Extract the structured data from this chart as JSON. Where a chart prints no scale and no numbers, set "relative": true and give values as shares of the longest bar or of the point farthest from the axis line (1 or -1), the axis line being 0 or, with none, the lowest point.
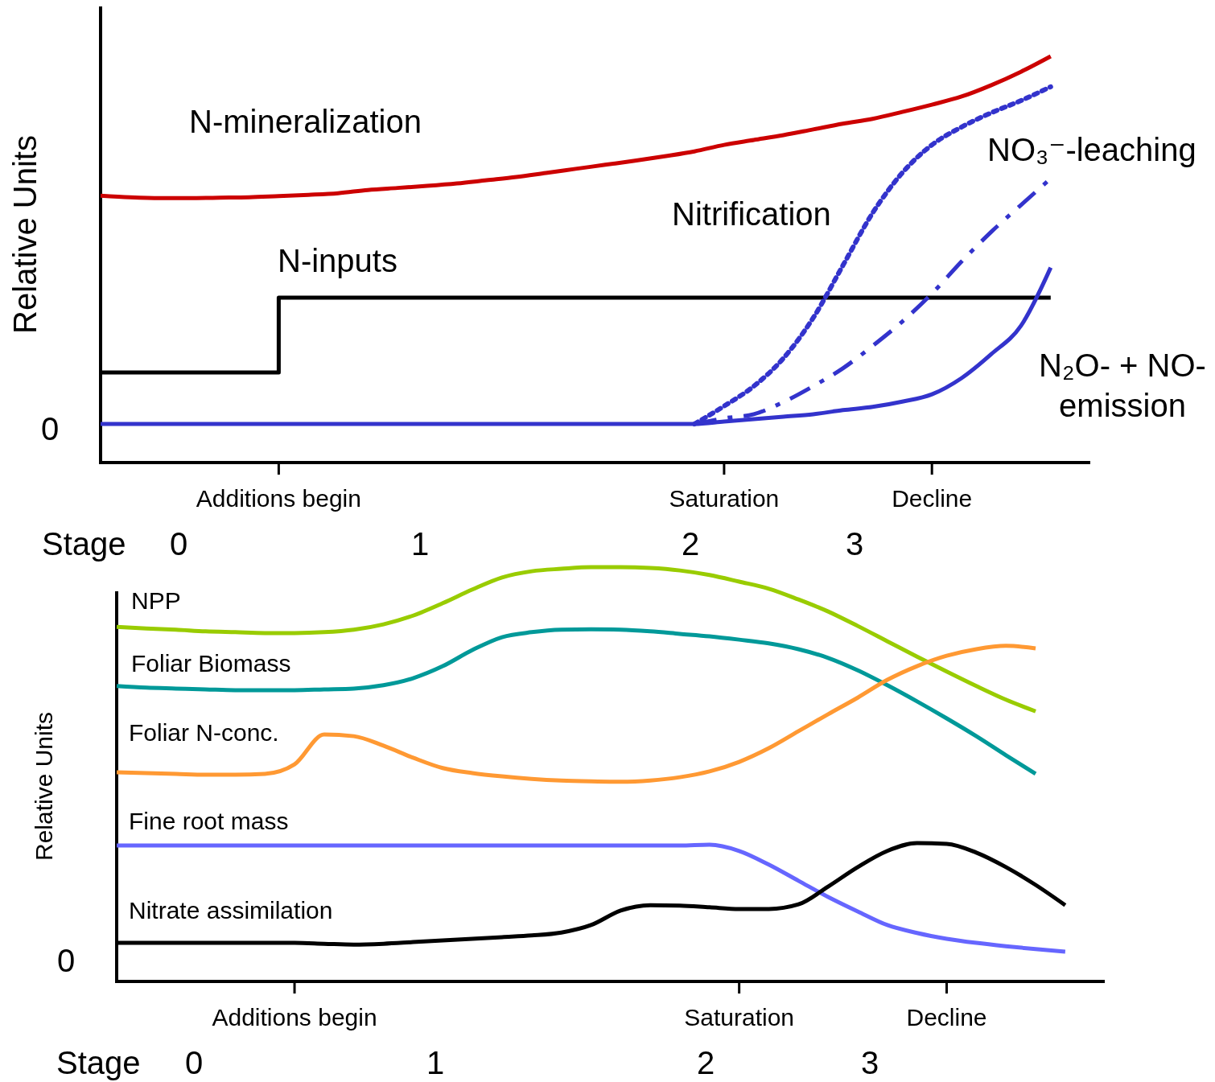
{
  "chart_data": [
    {
      "type": "line",
      "relative": true,
      "ylabel": "Relative Units",
      "categories": [
        null,
        null,
        null,
        null,
        null,
        null,
        "Additions begin",
        null,
        null,
        null,
        null,
        null,
        null,
        null,
        null,
        null,
        null,
        null,
        null,
        null,
        null,
        "Saturation",
        null,
        null,
        null,
        null,
        null,
        null,
        "Decline",
        null,
        null,
        null,
        null,
        null
      ],
      "annotations": [
        "0",
        "Stage",
        "0",
        "1",
        "2",
        "3"
      ],
      "series": [
        {
          "name": "N-mineralization",
          "color": "#cc0000",
          "values": [
            0.657,
            0.653,
            0.651,
            0.651,
            0.652,
            0.653,
            0.656,
            0.659,
            0.663,
            0.671,
            0.676,
            0.681,
            0.687,
            0.695,
            0.703,
            0.713,
            0.723,
            0.733,
            0.743,
            0.754,
            0.766,
            0.782,
            0.794,
            0.806,
            0.82,
            0.834,
            0.846,
            0.863,
            0.881,
            0.901,
            0.929,
            0.962,
            1.0,
            null
          ]
        },
        {
          "name": "N-inputs",
          "type": "step",
          "color": "#000000",
          "values": [
            0.222,
            0.222,
            0.222,
            0.222,
            0.222,
            0.222,
            0.406,
            0.406,
            0.406,
            0.406,
            0.406,
            0.406,
            0.406,
            0.406,
            0.406,
            0.406,
            0.406,
            0.406,
            0.406,
            0.406,
            0.406,
            0.406,
            0.406,
            0.406,
            0.406,
            0.406,
            0.406,
            0.406,
            0.406,
            0.406,
            0.406,
            0.406,
            0.406,
            null
          ]
        },
        {
          "name": "Nitrification",
          "color": "#3333cc",
          "line_style": "dotted",
          "values": [
            null,
            null,
            null,
            null,
            null,
            null,
            null,
            null,
            null,
            null,
            null,
            null,
            null,
            null,
            null,
            null,
            null,
            null,
            null,
            null,
            0.095,
            0.139,
            0.188,
            0.257,
            0.356,
            0.485,
            0.614,
            0.713,
            0.782,
            0.826,
            0.861,
            0.891,
            0.925,
            null
          ]
        },
        {
          "name": "NO₃⁻-leaching",
          "color": "#3333cc",
          "line_style": "dashed",
          "values": [
            null,
            null,
            null,
            null,
            null,
            null,
            null,
            null,
            null,
            null,
            null,
            null,
            null,
            null,
            null,
            null,
            null,
            null,
            null,
            null,
            0.095,
            0.109,
            0.119,
            0.149,
            0.188,
            0.232,
            0.287,
            0.347,
            0.416,
            0.495,
            0.568,
            0.634,
            0.699,
            null
          ]
        },
        {
          "name": "N₂O- + NO- emission",
          "color": "#3333cc",
          "values": [
            0.095,
            0.095,
            0.095,
            0.095,
            0.095,
            0.095,
            0.095,
            0.095,
            0.095,
            0.095,
            0.095,
            0.095,
            0.095,
            0.095,
            0.095,
            0.095,
            0.095,
            0.095,
            0.095,
            0.095,
            0.095,
            0.101,
            0.107,
            0.113,
            0.119,
            0.129,
            0.137,
            0.15,
            0.168,
            0.208,
            0.267,
            0.337,
            0.48,
            null
          ]
        }
      ]
    },
    {
      "type": "line",
      "relative": true,
      "ylabel": "Relative Units",
      "categories": [
        null,
        null,
        null,
        null,
        null,
        null,
        "Additions begin",
        null,
        null,
        null,
        null,
        null,
        null,
        null,
        null,
        null,
        null,
        null,
        null,
        null,
        null,
        "Saturation",
        null,
        null,
        null,
        null,
        null,
        null,
        "Decline",
        null,
        null,
        null,
        null,
        null
      ],
      "annotations": [
        "0",
        "Stage",
        "0",
        "1",
        "2",
        "3"
      ],
      "series": [
        {
          "name": "NPP",
          "color": "#99cc00",
          "values": [
            0.856,
            0.852,
            0.849,
            0.845,
            0.843,
            0.841,
            0.841,
            0.843,
            0.849,
            0.862,
            0.883,
            0.913,
            0.946,
            0.975,
            0.99,
            0.996,
            1.0,
            1.0,
            0.998,
            0.992,
            0.981,
            0.965,
            0.948,
            0.922,
            0.893,
            0.858,
            0.821,
            0.784,
            0.748,
            0.713,
            0.68,
            0.652,
            null,
            null
          ]
        },
        {
          "name": "Foliar Biomass",
          "color": "#009999",
          "values": [
            0.713,
            0.709,
            0.707,
            0.705,
            0.703,
            0.703,
            0.703,
            0.705,
            0.707,
            0.715,
            0.732,
            0.761,
            0.8,
            0.831,
            0.843,
            0.849,
            0.85,
            0.849,
            0.845,
            0.839,
            0.833,
            0.825,
            0.816,
            0.802,
            0.781,
            0.751,
            0.715,
            0.676,
            0.635,
            0.592,
            0.546,
            0.501,
            null,
            null
          ]
        },
        {
          "name": "Foliar N-conc.",
          "color": "#ff9933",
          "values": [
            0.505,
            0.503,
            0.501,
            0.499,
            0.499,
            0.501,
            0.524,
            0.596,
            0.592,
            0.569,
            0.54,
            0.515,
            0.503,
            0.495,
            0.489,
            0.485,
            0.483,
            0.482,
            0.485,
            0.493,
            0.507,
            0.53,
            0.563,
            0.604,
            0.645,
            0.685,
            0.728,
            0.761,
            0.786,
            0.802,
            0.81,
            0.804,
            null,
            null
          ]
        },
        {
          "name": "Fine root mass",
          "color": "#6666ff",
          "values": [
            0.328,
            0.328,
            0.328,
            0.328,
            0.328,
            0.328,
            0.328,
            0.328,
            0.328,
            0.328,
            0.328,
            0.328,
            0.328,
            0.328,
            0.328,
            0.328,
            0.328,
            0.328,
            0.328,
            0.328,
            0.33,
            0.315,
            0.282,
            0.243,
            0.204,
            0.169,
            0.136,
            0.117,
            0.103,
            0.093,
            0.085,
            0.078,
            0.072,
            null
          ]
        },
        {
          "name": "Nitrate assimilation",
          "color": "#000000",
          "values": [
            0.093,
            0.093,
            0.093,
            0.093,
            0.093,
            0.093,
            0.093,
            0.091,
            0.089,
            0.091,
            0.095,
            0.099,
            0.103,
            0.107,
            0.111,
            0.118,
            0.136,
            0.171,
            0.184,
            0.183,
            0.179,
            0.175,
            0.175,
            0.186,
            0.229,
            0.276,
            0.315,
            0.334,
            0.332,
            0.311,
            0.276,
            0.233,
            0.184,
            null
          ]
        }
      ]
    }
  ]
}
